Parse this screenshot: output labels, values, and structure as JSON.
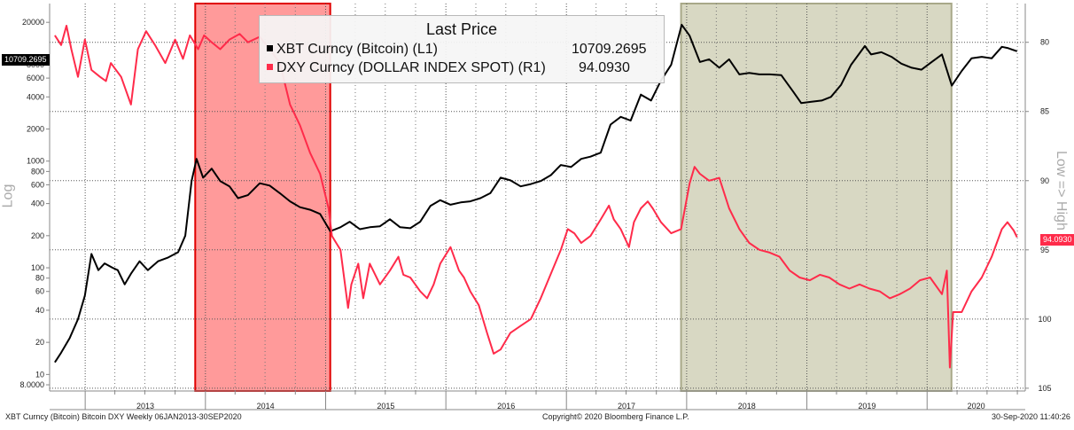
{
  "chart_data": {
    "type": "line",
    "legend": {
      "title": "Last Price",
      "placement": "top-center",
      "entries": [
        {
          "label": "XBT Curncy (Bitcoin)  (L1)",
          "value": "10709.2695",
          "color": "#000000"
        },
        {
          "label": "DXY Curncy (DOLLAR INDEX SPOT)  (R1)",
          "value": "94.0930",
          "color": "#ff2b4a"
        }
      ]
    },
    "y_left": {
      "label": "Log",
      "scale": "log",
      "range": [
        7,
        30000
      ],
      "ticks": [
        8,
        10,
        20,
        40,
        60,
        80,
        100,
        200,
        400,
        600,
        800,
        1000,
        2000,
        4000,
        6000,
        8000,
        20000
      ],
      "tick_labels": [
        "8.0000",
        "10",
        "20",
        "40",
        "60",
        "80",
        "100",
        "200",
        "400",
        "600",
        "800",
        "1000",
        "2000",
        "4000",
        "6000",
        "8000",
        "20000"
      ]
    },
    "y_right": {
      "label": "Low => High",
      "inverted": true,
      "range": [
        77.2,
        105.2
      ],
      "ticks": [
        80,
        85,
        90,
        95,
        100,
        105
      ],
      "tick_labels": [
        "80",
        "85",
        "90",
        "95",
        "100",
        "105"
      ]
    },
    "x_axis": {
      "range": [
        "2012-09-15",
        "2020-10-25"
      ],
      "year_labels": [
        "2013",
        "2014",
        "2015",
        "2016",
        "2017",
        "2018",
        "2019",
        "2020"
      ],
      "grid": true
    },
    "shaded_regions": [
      {
        "start": "2013-12-01",
        "end": "2015-01-15",
        "color": "#ff9a9a",
        "border": "#e00000"
      },
      {
        "start": "2017-12-15",
        "end": "2020-03-15",
        "color": "#d8d8c3",
        "border": "#a8a888"
      }
    ],
    "series": [
      {
        "name": "XBT Curncy (Bitcoin)",
        "axis": "left",
        "color": "#000000",
        "points": [
          [
            "2012-10-01",
            13
          ],
          [
            "2012-10-20",
            16
          ],
          [
            "2012-11-15",
            22
          ],
          [
            "2012-12-10",
            33
          ],
          [
            "2012-12-31",
            55
          ],
          [
            "2013-01-20",
            135
          ],
          [
            "2013-02-10",
            95
          ],
          [
            "2013-03-01",
            110
          ],
          [
            "2013-03-25",
            100
          ],
          [
            "2013-04-10",
            95
          ],
          [
            "2013-05-01",
            70
          ],
          [
            "2013-05-20",
            88
          ],
          [
            "2013-06-15",
            115
          ],
          [
            "2013-07-10",
            95
          ],
          [
            "2013-08-10",
            115
          ],
          [
            "2013-09-10",
            125
          ],
          [
            "2013-10-10",
            140
          ],
          [
            "2013-11-01",
            200
          ],
          [
            "2013-11-20",
            650
          ],
          [
            "2013-12-05",
            1050
          ],
          [
            "2013-12-25",
            700
          ],
          [
            "2014-01-20",
            850
          ],
          [
            "2014-02-15",
            650
          ],
          [
            "2014-03-15",
            580
          ],
          [
            "2014-04-10",
            450
          ],
          [
            "2014-05-10",
            480
          ],
          [
            "2014-06-15",
            620
          ],
          [
            "2014-07-15",
            590
          ],
          [
            "2014-08-15",
            500
          ],
          [
            "2014-09-15",
            420
          ],
          [
            "2014-10-15",
            370
          ],
          [
            "2014-11-15",
            350
          ],
          [
            "2014-12-15",
            320
          ],
          [
            "2015-01-15",
            220
          ],
          [
            "2015-02-15",
            240
          ],
          [
            "2015-03-15",
            270
          ],
          [
            "2015-04-15",
            230
          ],
          [
            "2015-05-15",
            240
          ],
          [
            "2015-06-15",
            245
          ],
          [
            "2015-07-15",
            285
          ],
          [
            "2015-08-15",
            240
          ],
          [
            "2015-09-15",
            235
          ],
          [
            "2015-10-15",
            270
          ],
          [
            "2015-11-15",
            380
          ],
          [
            "2015-12-15",
            430
          ],
          [
            "2016-01-15",
            390
          ],
          [
            "2016-02-15",
            410
          ],
          [
            "2016-03-15",
            420
          ],
          [
            "2016-04-15",
            450
          ],
          [
            "2016-05-15",
            500
          ],
          [
            "2016-06-15",
            700
          ],
          [
            "2016-07-15",
            660
          ],
          [
            "2016-08-15",
            580
          ],
          [
            "2016-09-15",
            610
          ],
          [
            "2016-10-15",
            650
          ],
          [
            "2016-11-15",
            740
          ],
          [
            "2016-12-15",
            920
          ],
          [
            "2017-01-15",
            880
          ],
          [
            "2017-02-15",
            1050
          ],
          [
            "2017-03-15",
            1100
          ],
          [
            "2017-04-15",
            1200
          ],
          [
            "2017-05-15",
            2200
          ],
          [
            "2017-06-15",
            2600
          ],
          [
            "2017-07-15",
            2400
          ],
          [
            "2017-08-15",
            4200
          ],
          [
            "2017-09-15",
            3700
          ],
          [
            "2017-10-15",
            5700
          ],
          [
            "2017-11-15",
            8000
          ],
          [
            "2017-12-17",
            19000
          ],
          [
            "2018-01-10",
            15000
          ],
          [
            "2018-02-10",
            8500
          ],
          [
            "2018-03-10",
            9000
          ],
          [
            "2018-04-10",
            7500
          ],
          [
            "2018-05-10",
            9000
          ],
          [
            "2018-06-10",
            6500
          ],
          [
            "2018-07-10",
            6700
          ],
          [
            "2018-08-10",
            6500
          ],
          [
            "2018-09-10",
            6500
          ],
          [
            "2018-10-15",
            6400
          ],
          [
            "2018-11-20",
            4500
          ],
          [
            "2018-12-15",
            3500
          ],
          [
            "2019-01-15",
            3600
          ],
          [
            "2019-02-15",
            3700
          ],
          [
            "2019-03-15",
            4000
          ],
          [
            "2019-04-15",
            5200
          ],
          [
            "2019-05-15",
            8000
          ],
          [
            "2019-06-26",
            12000
          ],
          [
            "2019-07-15",
            10000
          ],
          [
            "2019-08-15",
            10500
          ],
          [
            "2019-09-15",
            9500
          ],
          [
            "2019-10-15",
            8200
          ],
          [
            "2019-11-15",
            7500
          ],
          [
            "2019-12-15",
            7200
          ],
          [
            "2020-01-15",
            8500
          ],
          [
            "2020-02-15",
            10000
          ],
          [
            "2020-03-16",
            5100
          ],
          [
            "2020-04-15",
            7000
          ],
          [
            "2020-05-15",
            9200
          ],
          [
            "2020-06-15",
            9500
          ],
          [
            "2020-07-15",
            9200
          ],
          [
            "2020-08-15",
            11800
          ],
          [
            "2020-09-01",
            11500
          ],
          [
            "2020-09-30",
            10709
          ]
        ]
      },
      {
        "name": "DXY Curncy (DOLLAR INDEX SPOT)",
        "axis": "right",
        "color": "#ff2b4a",
        "points": [
          [
            "2012-10-01",
            79.5
          ],
          [
            "2012-10-20",
            80.2
          ],
          [
            "2012-11-05",
            78.8
          ],
          [
            "2012-11-20",
            80.5
          ],
          [
            "2012-12-10",
            82.5
          ],
          [
            "2012-12-31",
            79.8
          ],
          [
            "2013-01-20",
            82.0
          ],
          [
            "2013-02-15",
            82.5
          ],
          [
            "2013-03-05",
            82.8
          ],
          [
            "2013-03-20",
            81.5
          ],
          [
            "2013-04-20",
            82.5
          ],
          [
            "2013-05-20",
            84.5
          ],
          [
            "2013-06-10",
            80.5
          ],
          [
            "2013-07-05",
            79.2
          ],
          [
            "2013-08-01",
            80.2
          ],
          [
            "2013-09-01",
            81.5
          ],
          [
            "2013-10-01",
            79.8
          ],
          [
            "2013-10-25",
            81.2
          ],
          [
            "2013-11-15",
            79.5
          ],
          [
            "2013-12-10",
            80.5
          ],
          [
            "2013-12-28",
            79.5
          ],
          [
            "2014-01-20",
            80.0
          ],
          [
            "2014-02-15",
            80.5
          ],
          [
            "2014-03-15",
            79.8
          ],
          [
            "2014-04-15",
            79.4
          ],
          [
            "2014-05-10",
            80.0
          ],
          [
            "2014-06-15",
            79.6
          ],
          [
            "2014-07-15",
            80.5
          ],
          [
            "2014-08-15",
            81.5
          ],
          [
            "2014-09-15",
            84.5
          ],
          [
            "2014-10-15",
            86.0
          ],
          [
            "2014-11-15",
            88.0
          ],
          [
            "2014-12-15",
            89.5
          ],
          [
            "2015-01-10",
            92.0
          ],
          [
            "2015-01-20",
            94.0
          ],
          [
            "2015-02-15",
            95.0
          ],
          [
            "2015-03-10",
            99.2
          ],
          [
            "2015-03-20",
            97.5
          ],
          [
            "2015-04-10",
            96.0
          ],
          [
            "2015-04-25",
            98.5
          ],
          [
            "2015-05-15",
            96.0
          ],
          [
            "2015-06-15",
            97.5
          ],
          [
            "2015-07-15",
            96.5
          ],
          [
            "2015-08-10",
            95.5
          ],
          [
            "2015-08-25",
            96.8
          ],
          [
            "2015-09-15",
            97.0
          ],
          [
            "2015-10-15",
            98.0
          ],
          [
            "2015-11-05",
            98.5
          ],
          [
            "2015-11-25",
            97.5
          ],
          [
            "2015-12-15",
            96.0
          ],
          [
            "2016-01-15",
            94.8
          ],
          [
            "2016-02-10",
            96.5
          ],
          [
            "2016-02-25",
            97.0
          ],
          [
            "2016-03-15",
            98.0
          ],
          [
            "2016-04-10",
            99.0
          ],
          [
            "2016-05-05",
            101.0
          ],
          [
            "2016-05-25",
            102.5
          ],
          [
            "2016-06-15",
            102.2
          ],
          [
            "2016-07-15",
            101.0
          ],
          [
            "2016-08-15",
            100.5
          ],
          [
            "2016-09-15",
            100.0
          ],
          [
            "2016-10-15",
            98.5
          ],
          [
            "2016-11-10",
            97.0
          ],
          [
            "2016-12-15",
            95.0
          ],
          [
            "2017-01-05",
            93.5
          ],
          [
            "2017-01-25",
            93.8
          ],
          [
            "2017-02-15",
            94.5
          ],
          [
            "2017-03-15",
            94.0
          ],
          [
            "2017-04-15",
            92.8
          ],
          [
            "2017-05-10",
            91.8
          ],
          [
            "2017-05-25",
            92.8
          ],
          [
            "2017-06-15",
            93.5
          ],
          [
            "2017-07-10",
            94.8
          ],
          [
            "2017-07-25",
            93.0
          ],
          [
            "2017-08-15",
            92.0
          ],
          [
            "2017-09-05",
            91.5
          ],
          [
            "2017-09-20",
            92.0
          ],
          [
            "2017-10-15",
            93.0
          ],
          [
            "2017-11-15",
            93.8
          ],
          [
            "2017-12-15",
            93.5
          ],
          [
            "2018-01-10",
            90.2
          ],
          [
            "2018-01-25",
            89.0
          ],
          [
            "2018-02-10",
            89.5
          ],
          [
            "2018-03-10",
            90.0
          ],
          [
            "2018-04-10",
            89.8
          ],
          [
            "2018-05-10",
            92.0
          ],
          [
            "2018-06-10",
            93.5
          ],
          [
            "2018-07-10",
            94.5
          ],
          [
            "2018-08-10",
            95.0
          ],
          [
            "2018-09-10",
            95.2
          ],
          [
            "2018-10-10",
            95.5
          ],
          [
            "2018-11-10",
            96.5
          ],
          [
            "2018-12-10",
            97.0
          ],
          [
            "2019-01-10",
            97.2
          ],
          [
            "2019-02-10",
            96.8
          ],
          [
            "2019-03-10",
            97.0
          ],
          [
            "2019-04-10",
            97.5
          ],
          [
            "2019-05-10",
            97.8
          ],
          [
            "2019-06-10",
            97.5
          ],
          [
            "2019-07-10",
            97.8
          ],
          [
            "2019-08-10",
            98.0
          ],
          [
            "2019-09-10",
            98.5
          ],
          [
            "2019-10-10",
            98.2
          ],
          [
            "2019-11-10",
            97.8
          ],
          [
            "2019-12-10",
            97.2
          ],
          [
            "2020-01-10",
            97.0
          ],
          [
            "2020-02-15",
            98.2
          ],
          [
            "2020-03-01",
            96.5
          ],
          [
            "2020-03-10",
            103.5
          ],
          [
            "2020-03-20",
            99.5
          ],
          [
            "2020-04-15",
            99.5
          ],
          [
            "2020-05-15",
            98.0
          ],
          [
            "2020-06-15",
            97.0
          ],
          [
            "2020-07-15",
            95.5
          ],
          [
            "2020-08-15",
            93.5
          ],
          [
            "2020-09-01",
            93.0
          ],
          [
            "2020-09-20",
            93.6
          ],
          [
            "2020-09-30",
            94.09
          ]
        ]
      }
    ],
    "last_value_badges": [
      {
        "series": "XBT Curncy (Bitcoin)",
        "value": "10709.2695",
        "side": "left",
        "color": "#000000"
      },
      {
        "series": "DXY Curncy (DOLLAR INDEX SPOT)",
        "value": "94.0930",
        "side": "right",
        "color": "#ff2b4a"
      }
    ]
  },
  "footer": {
    "left": "XBT Curncy (Bitcoin) Bitcoin DXY  Weekly 06JAN2013-30SEP2020",
    "center": "Copyright© 2020 Bloomberg Finance L.P.",
    "right": "30-Sep-2020 11:40:26"
  }
}
